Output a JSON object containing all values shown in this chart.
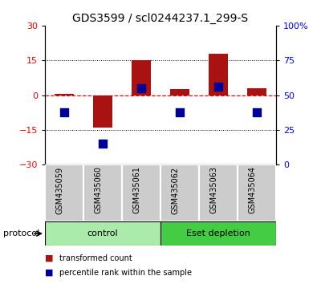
{
  "title": "GDS3599 / scl0244237.1_299-S",
  "samples": [
    "GSM435059",
    "GSM435060",
    "GSM435061",
    "GSM435062",
    "GSM435063",
    "GSM435064"
  ],
  "red_bars": [
    0.5,
    -14.0,
    15.0,
    2.5,
    18.0,
    3.0
  ],
  "blue_dots_pct": [
    37.5,
    15.0,
    55.0,
    37.5,
    56.0,
    37.5
  ],
  "ylim_left": [
    -30,
    30
  ],
  "ylim_right": [
    0,
    100
  ],
  "yticks_left": [
    -30,
    -15,
    0,
    15,
    30
  ],
  "yticks_right": [
    0,
    25,
    50,
    75,
    100
  ],
  "ytick_right_labels": [
    "0",
    "25",
    "50",
    "75",
    "100%"
  ],
  "groups": [
    {
      "label": "control",
      "start": 0,
      "end": 3,
      "color": "#AAEAAA"
    },
    {
      "label": "Eset depletion",
      "start": 3,
      "end": 6,
      "color": "#44CC44"
    }
  ],
  "legend_red": "transformed count",
  "legend_blue": "percentile rank within the sample",
  "bar_color": "#AA1111",
  "dot_color": "#000099",
  "bar_width": 0.5,
  "dot_size": 45,
  "protocol_label": "protocol",
  "bg_color": "#FFFFFF",
  "sample_box_color": "#CCCCCC",
  "title_fontsize": 10,
  "tick_fontsize": 8,
  "label_fontsize": 7.5
}
